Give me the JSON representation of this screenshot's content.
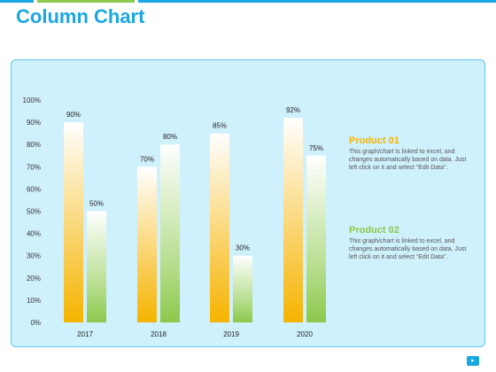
{
  "page": {
    "title": "Column Chart",
    "page_icon": "speaker-icon"
  },
  "colors": {
    "accent": "#1aa7e0",
    "product_01": "#f5b400",
    "product_02": "#8cc84b",
    "panel_bg": "#cff0fd",
    "panel_border": "#5fc7ec",
    "topbar": [
      "#1aa7e0",
      "#8cc84b",
      "#f5b400",
      "#1aa7e0"
    ]
  },
  "legend": [
    {
      "title": "Product 01",
      "text": "This graph/chart is linked to excel, and changes automatically based on data. Just left click on it and select “Edit Data”."
    },
    {
      "title": "Product 02",
      "text": "This graph/chart is linked to excel, and changes automatically based on data. Just left click on it and select “Edit Data”."
    }
  ],
  "chart_data": {
    "type": "bar",
    "categories": [
      "2017",
      "2018",
      "2019",
      "2020"
    ],
    "series": [
      {
        "name": "Product 01",
        "values": [
          90,
          70,
          85,
          92
        ]
      },
      {
        "name": "Product 02",
        "values": [
          50,
          80,
          30,
          75
        ]
      }
    ],
    "y_ticks": [
      "0%",
      "10%",
      "20%",
      "30%",
      "40%",
      "50%",
      "60%",
      "70%",
      "80%",
      "90%",
      "100%"
    ],
    "data_labels": [
      [
        "90%",
        "70%",
        "85%",
        "92%"
      ],
      [
        "50%",
        "80%",
        "30%",
        "75%"
      ]
    ],
    "ylim": [
      0,
      100
    ],
    "grid": false,
    "legend_position": "right"
  }
}
